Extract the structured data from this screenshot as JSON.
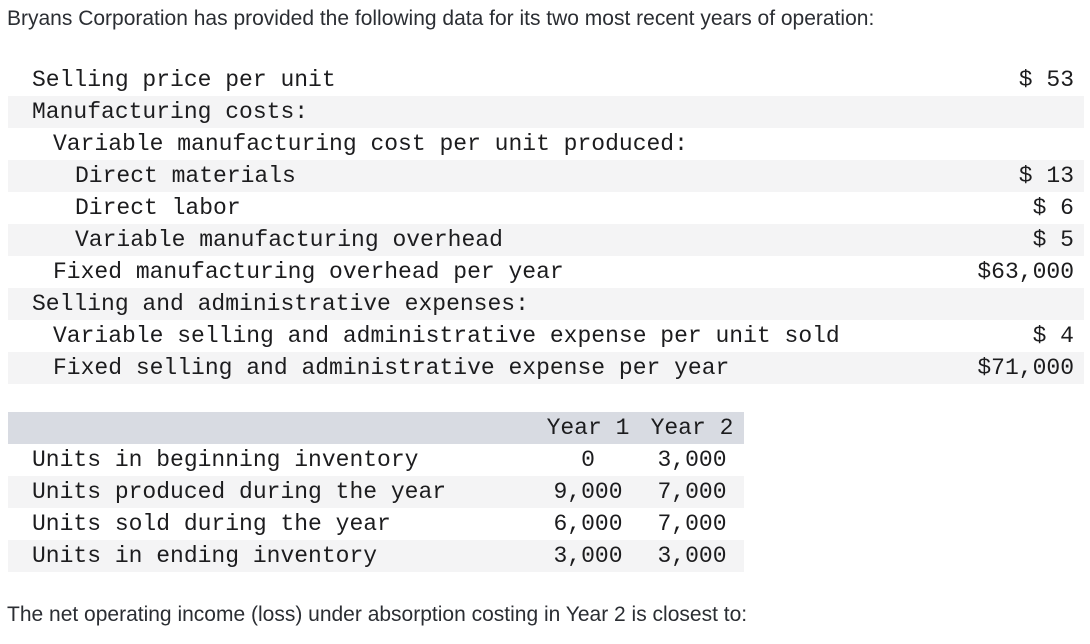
{
  "title": "Bryans Corporation has provided the following data for its two most recent years of operation:",
  "cost_table": {
    "rows": [
      {
        "label": "Selling price per unit",
        "value": "$ 53"
      },
      {
        "label": "Manufacturing costs:",
        "value": ""
      },
      {
        "label": "Variable manufacturing cost per unit produced:",
        "value": ""
      },
      {
        "label": "Direct materials",
        "value": "$ 13"
      },
      {
        "label": "Direct labor",
        "value": "$ 6"
      },
      {
        "label": "Variable manufacturing overhead",
        "value": "$ 5"
      },
      {
        "label": "Fixed manufacturing overhead per year",
        "value": "$63,000"
      },
      {
        "label": "Selling and administrative expenses:",
        "value": ""
      },
      {
        "label": "Variable selling and administrative expense per unit sold",
        "value": "$ 4"
      },
      {
        "label": "Fixed selling and administrative expense per year",
        "value": "$71,000"
      }
    ]
  },
  "units_table": {
    "headers": {
      "year1": "Year 1",
      "year2": "Year 2"
    },
    "rows": [
      {
        "label": "Units in beginning inventory",
        "year1": "0",
        "year2": "3,000"
      },
      {
        "label": "Units produced during the year",
        "year1": "9,000",
        "year2": "7,000"
      },
      {
        "label": "Units sold during the year",
        "year1": "6,000",
        "year2": "7,000"
      },
      {
        "label": "Units in ending inventory",
        "year1": "3,000",
        "year2": "3,000"
      }
    ]
  },
  "question": "The net operating income (loss) under absorption costing in Year 2 is closest to:",
  "colors": {
    "stripe": "#f4f4f5",
    "units_header": "#d8dbe2",
    "text": "#2b2e33",
    "mono_text": "#1c1c1e"
  }
}
